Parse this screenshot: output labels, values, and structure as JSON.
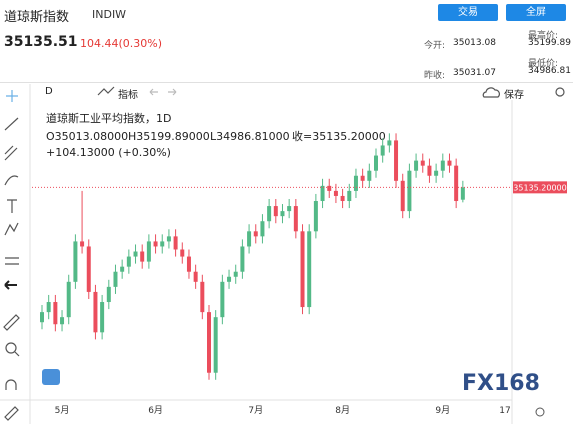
{
  "header": {
    "title": "道琼斯指数",
    "code": "INDIW",
    "price": "35135.51",
    "change": "104.44(0.30%)",
    "buttons": [
      "交易",
      "全屏"
    ],
    "stats": [
      {
        "label": "今开:",
        "value": "35013.08"
      },
      {
        "label": "最高价:",
        "value": "35199.89"
      },
      {
        "label": "昨收:",
        "value": "35031.07"
      },
      {
        "label": "最低价:",
        "value": "34986.81"
      }
    ]
  },
  "toolbar": {
    "interval": "D",
    "indicators": "指标",
    "save": "保存"
  },
  "chart_data": {
    "type": "candlestick",
    "legend_title": "道琼斯工业平均指数，1D",
    "ohlc_text": [
      "O35013.08000",
      "H35199.89000",
      "L34986.81000",
      "收=35135.20000"
    ],
    "change_text": "+104.13000 (+0.30%)",
    "last_price_label": "35135.20000",
    "categories": [
      null,
      null,
      null,
      "5月",
      null,
      null,
      null,
      null,
      null,
      null,
      null,
      null,
      null,
      null,
      null,
      null,
      null,
      "6月",
      null,
      null,
      null,
      null,
      null,
      null,
      null,
      null,
      null,
      null,
      null,
      null,
      null,
      null,
      "7月",
      null,
      null,
      null,
      null,
      null,
      null,
      null,
      null,
      null,
      null,
      null,
      null,
      "8月",
      null,
      null,
      null,
      null,
      null,
      null,
      null,
      null,
      null,
      null,
      null,
      null,
      null,
      null,
      "9月",
      null,
      null,
      null
    ],
    "future_label": "17",
    "open": [
      33800,
      33900,
      34000,
      33780,
      33850,
      34200,
      34600,
      34550,
      34100,
      33700,
      34000,
      34150,
      34300,
      34350,
      34450,
      34500,
      34400,
      34600,
      34550,
      34600,
      34650,
      34520,
      34450,
      34300,
      34200,
      33900,
      33300,
      33850,
      34200,
      34250,
      34300,
      34550,
      34700,
      34650,
      34800,
      34950,
      34850,
      34900,
      34950,
      34700,
      33950,
      34700,
      35000,
      35150,
      35100,
      35050,
      35000,
      35100,
      35250,
      35200,
      35300,
      35450,
      35550,
      35600,
      35200,
      34900,
      35300,
      35400,
      35350,
      35250,
      35300,
      35400,
      35350,
      35013.08
    ],
    "high": [
      33970,
      34070,
      34070,
      33920,
      34270,
      34670,
      35100,
      34620,
      34170,
      34070,
      34220,
      34370,
      34420,
      34520,
      34570,
      34570,
      34670,
      34670,
      34670,
      34720,
      34720,
      34590,
      34520,
      34370,
      34270,
      33970,
      33920,
      34270,
      34320,
      34370,
      34620,
      34770,
      34770,
      34870,
      35020,
      35020,
      34970,
      35020,
      35020,
      34770,
      34770,
      35070,
      35220,
      35220,
      35170,
      35120,
      35170,
      35320,
      35320,
      35370,
      35520,
      35620,
      35670,
      35670,
      35270,
      35370,
      35470,
      35470,
      35420,
      35370,
      35470,
      35470,
      35420,
      35199.89
    ],
    "low": [
      33730,
      33830,
      33710,
      33710,
      33780,
      34130,
      34480,
      34030,
      33630,
      33630,
      33930,
      34080,
      34230,
      34280,
      34380,
      34330,
      34330,
      34480,
      34480,
      34530,
      34450,
      34380,
      34230,
      34130,
      33830,
      33230,
      33230,
      33780,
      34130,
      34180,
      34230,
      34480,
      34580,
      34580,
      34730,
      34780,
      34780,
      34830,
      34630,
      33880,
      33880,
      34630,
      34930,
      35030,
      34980,
      34930,
      34930,
      35030,
      35130,
      35130,
      35230,
      35380,
      35480,
      35130,
      34830,
      34830,
      35230,
      35280,
      35180,
      35180,
      35230,
      35280,
      34930,
      34986.81
    ],
    "close": [
      33900,
      34000,
      33780,
      33850,
      34200,
      34600,
      34550,
      34100,
      33700,
      34000,
      34150,
      34300,
      34350,
      34450,
      34500,
      34400,
      34600,
      34550,
      34600,
      34650,
      34520,
      34450,
      34300,
      34200,
      33900,
      33300,
      33850,
      34200,
      34250,
      34300,
      34550,
      34700,
      34650,
      34800,
      34950,
      34850,
      34900,
      34950,
      34700,
      33950,
      34700,
      35000,
      35150,
      35100,
      35050,
      35000,
      35100,
      35250,
      35200,
      35300,
      35450,
      35550,
      35600,
      35200,
      34900,
      35300,
      35400,
      35350,
      35250,
      35300,
      35400,
      35350,
      35000,
      35135.2
    ],
    "up_color": "#53b987",
    "down_color": "#eb4d5c",
    "ylim": [
      33030,
      36000
    ]
  },
  "watermark": "FX168"
}
